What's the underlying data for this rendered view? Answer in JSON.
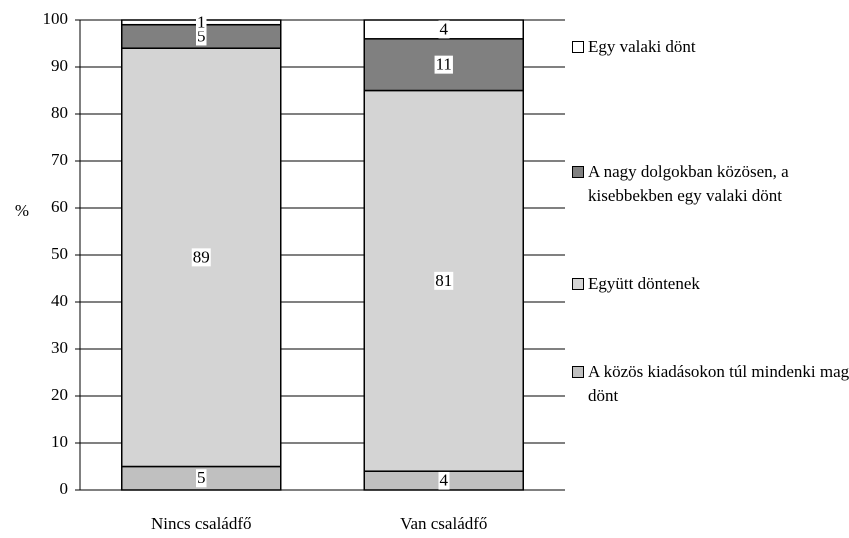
{
  "chart_data": {
    "type": "stacked_bar",
    "y_label": "%",
    "categories": [
      "Nincs családfő",
      "Van családfő"
    ],
    "series": [
      {
        "name": "A közös kiadásokon túl mindenki maga dönt",
        "color": "#c0c0c0",
        "values": [
          5,
          4
        ]
      },
      {
        "name": "Együtt döntenek",
        "color": "#d4d4d4",
        "values": [
          89,
          81
        ]
      },
      {
        "name": "A nagy dolgokban közösen, a kisebbekben egy valaki dönt",
        "color": "#808080",
        "values": [
          5,
          11
        ]
      },
      {
        "name": "Egy valaki dönt",
        "color": "#ffffff",
        "values": [
          1,
          4
        ]
      }
    ],
    "ylim": [
      0,
      100
    ],
    "yticks": [
      0,
      10,
      20,
      30,
      40,
      50,
      60,
      70,
      80,
      90,
      100
    ],
    "grid": true
  }
}
